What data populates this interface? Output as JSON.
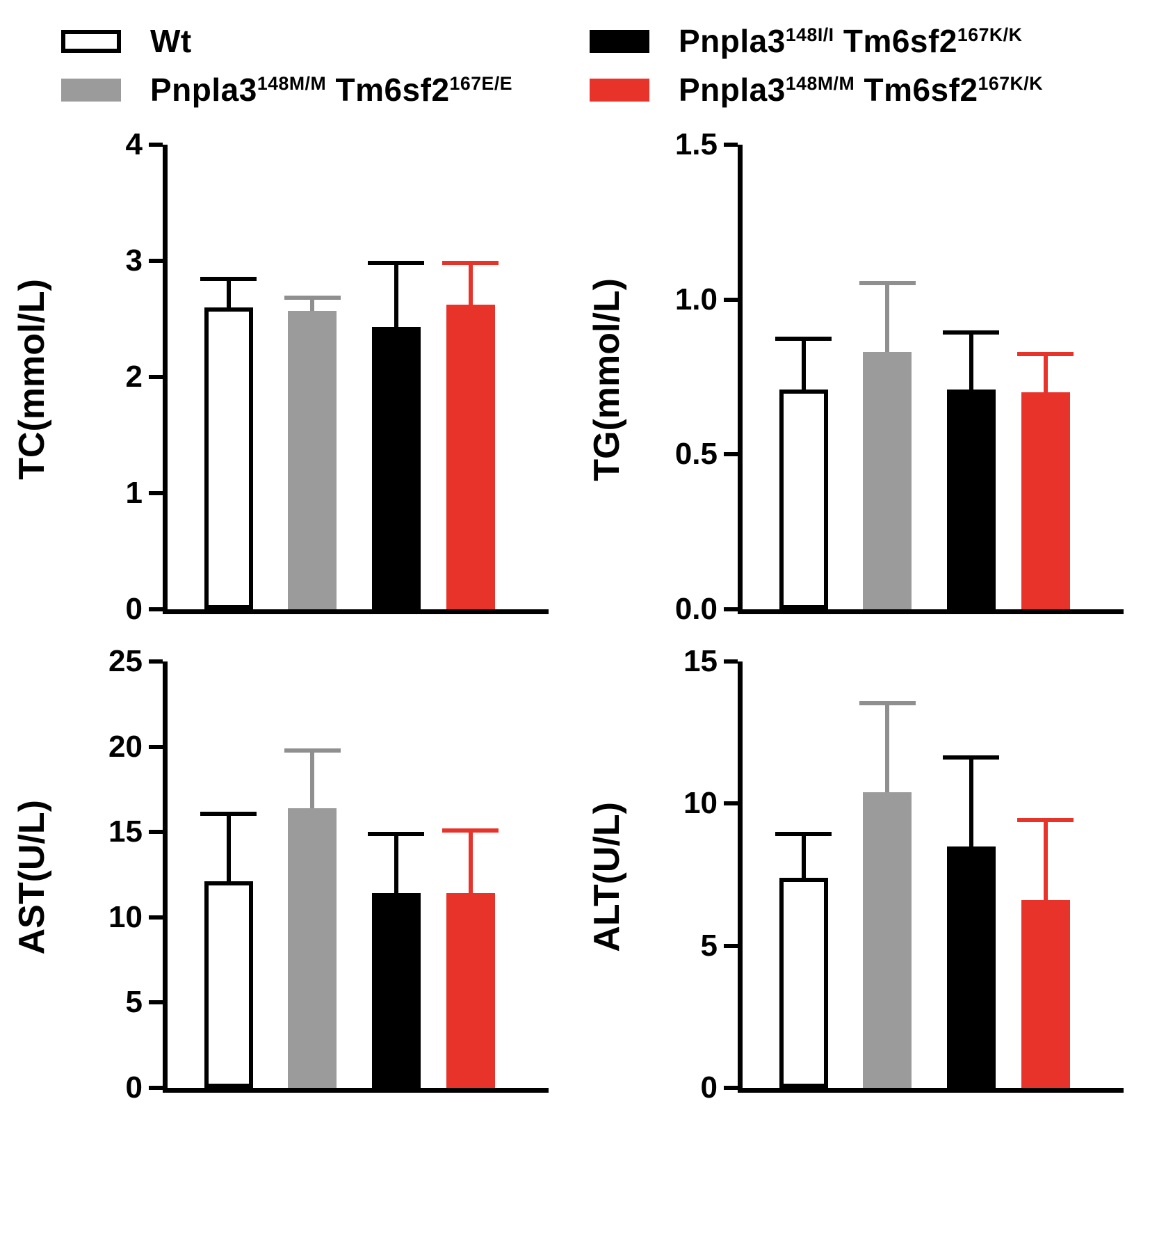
{
  "colors": {
    "axis": "#000000",
    "white_bar": "#ffffff",
    "gray_bar": "#9b9b9b",
    "black_bar": "#000000",
    "red_bar": "#e8332b"
  },
  "group_styles": [
    {
      "fill": "#ffffff",
      "border": "#000000",
      "error": "#000000"
    },
    {
      "fill": "#9b9b9b",
      "border": "#9b9b9b",
      "error": "#8f8f8f"
    },
    {
      "fill": "#000000",
      "border": "#000000",
      "error": "#000000"
    },
    {
      "fill": "#e8332b",
      "border": "#e8332b",
      "error": "#e8332b"
    }
  ],
  "legend": {
    "items": [
      {
        "name": "wt",
        "base1": "Wt",
        "sup1": "",
        "base2": "",
        "sup2": ""
      },
      {
        "name": "gray",
        "base1": "Pnpla3",
        "sup1": "148M/M",
        "base2": " Tm6sf2",
        "sup2": "167E/E"
      },
      {
        "name": "black",
        "base1": "Pnpla3",
        "sup1": "148I/I",
        "base2": " Tm6sf2",
        "sup2": "167K/K"
      },
      {
        "name": "red",
        "base1": "Pnpla3",
        "sup1": "148M/M",
        "base2": " Tm6sf2",
        "sup2": "167K/K"
      }
    ]
  },
  "chart_data": [
    {
      "type": "bar",
      "id": "tc",
      "title": "",
      "xlabel": "",
      "ylabel": "TC(mmol/L)",
      "ylim": [
        0,
        4
      ],
      "yticks": [
        0,
        1,
        2,
        3,
        4
      ],
      "ytick_labels": [
        "0",
        "1",
        "2",
        "3",
        "4"
      ],
      "categories": [
        "Wt",
        "Pnpla3 148M/M Tm6sf2 167E/E",
        "Pnpla3 148I/I Tm6sf2 167K/K",
        "Pnpla3 148M/M Tm6sf2 167K/K"
      ],
      "values": [
        2.6,
        2.57,
        2.43,
        2.62
      ],
      "errors": [
        0.26,
        0.13,
        0.57,
        0.38
      ],
      "grid": false,
      "legend_position": "top"
    },
    {
      "type": "bar",
      "id": "tg",
      "title": "",
      "xlabel": "",
      "ylabel": "TG(mmol/L)",
      "ylim": [
        0,
        1.5
      ],
      "yticks": [
        0,
        0.5,
        1.0,
        1.5
      ],
      "ytick_labels": [
        "0.0",
        "0.5",
        "1.0",
        "1.5"
      ],
      "categories": [
        "Wt",
        "Pnpla3 148M/M Tm6sf2 167E/E",
        "Pnpla3 148I/I Tm6sf2 167K/K",
        "Pnpla3 148M/M Tm6sf2 167K/K"
      ],
      "values": [
        0.71,
        0.83,
        0.71,
        0.7
      ],
      "errors": [
        0.17,
        0.23,
        0.19,
        0.13
      ],
      "grid": false,
      "legend_position": "top"
    },
    {
      "type": "bar",
      "id": "ast",
      "title": "",
      "xlabel": "",
      "ylabel": "AST(U/L)",
      "ylim": [
        0,
        25
      ],
      "yticks": [
        0,
        5,
        10,
        15,
        20,
        25
      ],
      "ytick_labels": [
        "0",
        "5",
        "10",
        "15",
        "20",
        "25"
      ],
      "categories": [
        "Wt",
        "Pnpla3 148M/M Tm6sf2 167E/E",
        "Pnpla3 148I/I Tm6sf2 167K/K",
        "Pnpla3 148M/M Tm6sf2 167K/K"
      ],
      "values": [
        12.1,
        16.4,
        11.4,
        11.4
      ],
      "errors": [
        4.1,
        3.5,
        3.6,
        3.8
      ],
      "grid": false,
      "legend_position": "top"
    },
    {
      "type": "bar",
      "id": "alt",
      "title": "",
      "xlabel": "",
      "ylabel": "ALT(U/L)",
      "ylim": [
        0,
        15
      ],
      "yticks": [
        0,
        5,
        10,
        15
      ],
      "ytick_labels": [
        "0",
        "5",
        "10",
        "15"
      ],
      "categories": [
        "Wt",
        "Pnpla3 148M/M Tm6sf2 167E/E",
        "Pnpla3 148I/I Tm6sf2 167K/K",
        "Pnpla3 148M/M Tm6sf2 167K/K"
      ],
      "values": [
        7.4,
        10.4,
        8.5,
        6.6
      ],
      "errors": [
        1.6,
        3.2,
        3.2,
        2.9
      ],
      "grid": false,
      "legend_position": "top"
    }
  ]
}
